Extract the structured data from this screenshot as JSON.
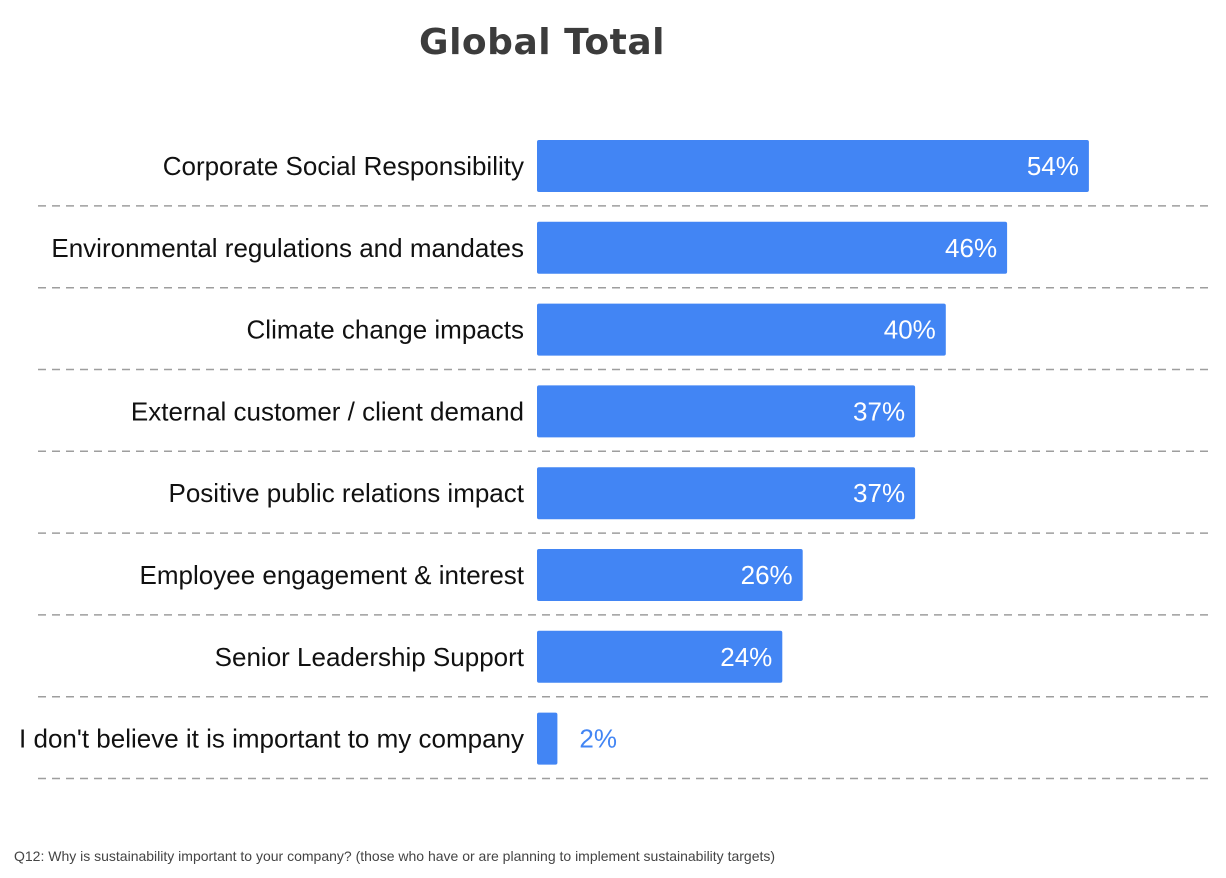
{
  "chart_data": {
    "type": "bar",
    "orientation": "horizontal",
    "title": "Global Total",
    "categories": [
      "Corporate Social Responsibility",
      "Environmental regulations and mandates",
      "Climate change impacts",
      "External customer / client demand",
      "Positive public relations impact",
      "Employee engagement & interest",
      "Senior Leadership Support",
      "I don't believe it is important to my company"
    ],
    "values": [
      54,
      46,
      40,
      37,
      37,
      26,
      24,
      2
    ],
    "value_labels": [
      "54%",
      "46%",
      "40%",
      "37%",
      "37%",
      "26%",
      "24%",
      "2%"
    ],
    "unit": "%",
    "xlim": [
      0,
      100
    ],
    "grid": "dashed horizontal separators",
    "legend": "none",
    "colors": {
      "bar": "#4285f4",
      "label_inside": "#ffffff",
      "label_outside": "#4285f4",
      "separator": "#9e9e9e"
    }
  },
  "footnote": "Q12: Why is sustainability important to your company? (those who have  or are planning to implement sustainability targets)"
}
